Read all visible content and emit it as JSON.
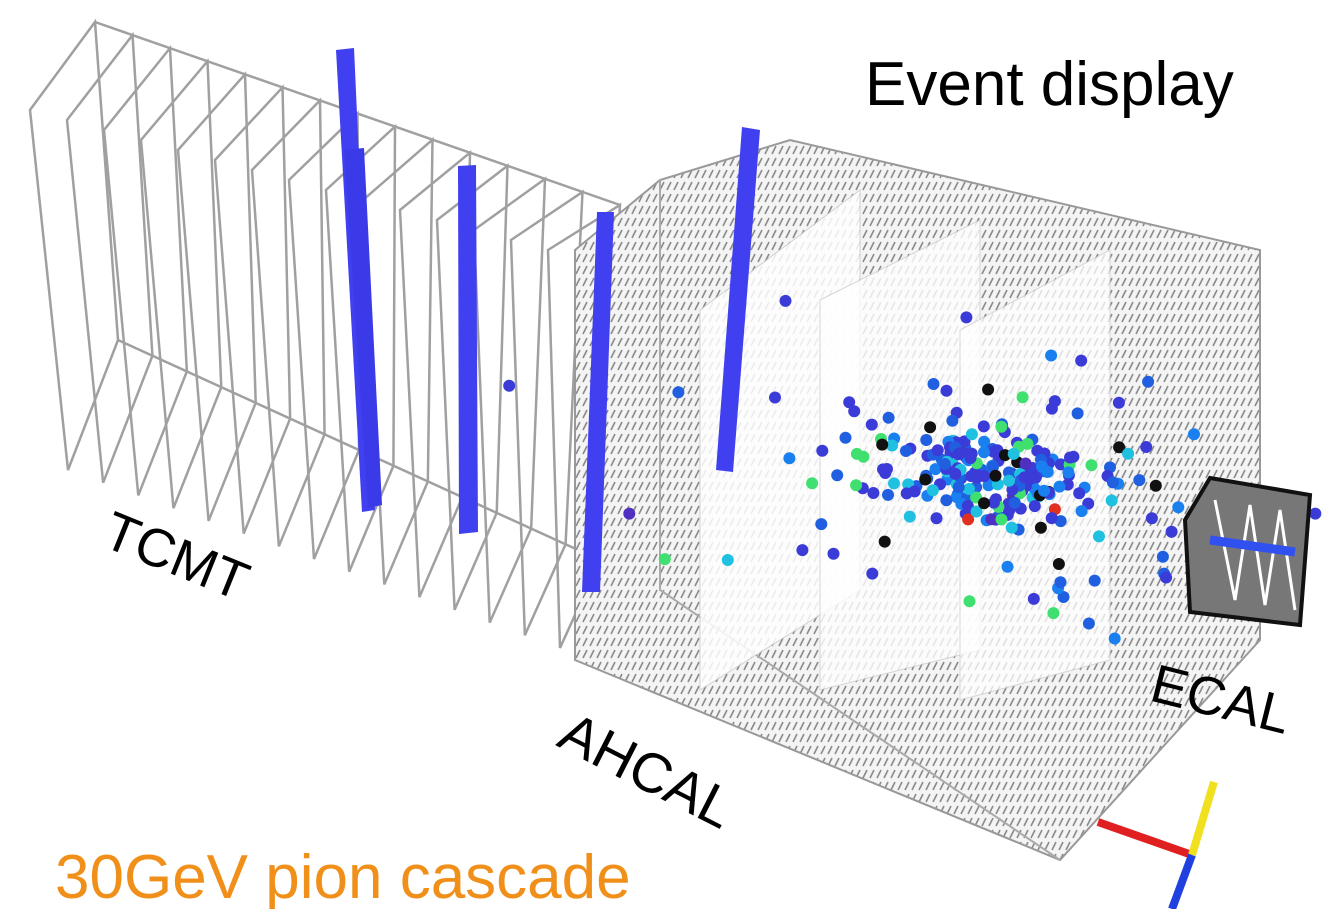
{
  "title": "Event display",
  "labels": {
    "tcmt": "TCMT",
    "ahcal": "AHCAL",
    "ecal": "ECAL"
  },
  "caption": "30GeV pion cascade"
}
